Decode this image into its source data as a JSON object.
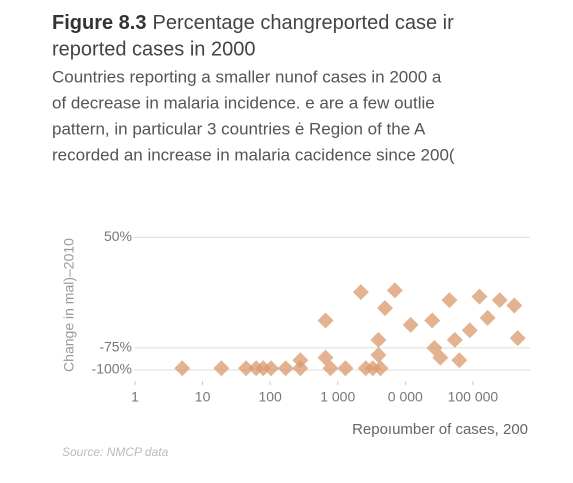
{
  "chart_data": {
    "type": "scatter",
    "figure_label": "Figure 8.3",
    "title": "Percentage changreported case ir",
    "title_line2": "reported cases in 2000",
    "subtitle": [
      "Countries reporting a smaller nunof cases in 2000 a",
      "of decrease in malaria incidence. e are a few outlie",
      "pattern, in particular 3 countries ė Region of the A",
      "recorded an increase in malaria cacidence since 200("
    ],
    "y_label": "Change in mal)–2010",
    "x_label": "Repoıumber of cases, 200",
    "source": "Source: NMCP data",
    "log_x": true,
    "xlim": [
      0.6,
      700000
    ],
    "ylim": [
      -117,
      64
    ],
    "xticks": [
      1,
      10,
      100,
      {
        "value": 1000,
        "label": "1 000"
      },
      {
        "value": 10000,
        "label": "0 000"
      },
      {
        "value": 100000,
        "label": "100 000"
      }
    ],
    "yticks": [
      {
        "value": 50,
        "label": "50%"
      },
      {
        "value": -75,
        "label": "-75%"
      },
      {
        "value": -100,
        "label": "-100%"
      }
    ],
    "grid": true,
    "series": [
      {
        "color": "#d99a6c",
        "x": [
          5,
          19,
          44,
          62,
          79,
          103,
          170,
          280,
          780,
          1300,
          2600,
          3300,
          4300,
          660,
          280,
          4000,
          4000,
          660,
          5000,
          12000,
          25000,
          27000,
          33000,
          54000,
          90000,
          165000,
          125000,
          250000,
          410000,
          460000,
          45000,
          7000,
          63000,
          2200
        ],
        "values": [
          -98,
          -98,
          -98,
          -98,
          -98,
          -98,
          -98,
          -98,
          -98,
          -98,
          -98,
          -98,
          -98,
          -86,
          -89,
          -66,
          -83,
          -44,
          -30,
          -49,
          -44,
          -75,
          -86,
          -66,
          -55,
          -41,
          -17,
          -21,
          -27,
          -64,
          -21,
          -10,
          -89,
          -12
        ]
      }
    ]
  }
}
